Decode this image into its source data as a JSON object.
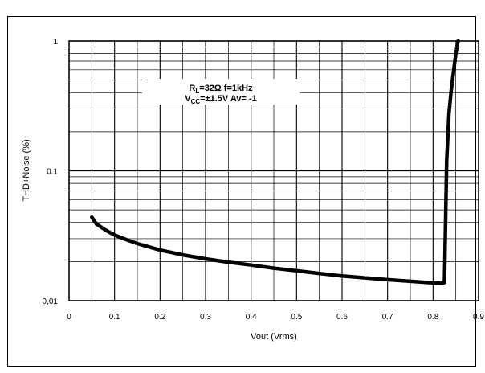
{
  "chart_data": {
    "type": "line",
    "xlabel": "Vout (Vrms)",
    "ylabel": "THD+Noise (%)",
    "xlim": [
      0,
      0.9
    ],
    "ylim": [
      0.01,
      1
    ],
    "y_scale": "log",
    "grid": true,
    "x_ticks": [
      "0",
      "0.1",
      "0.2",
      "0.3",
      "0.4",
      "0.5",
      "0.6",
      "0.7",
      "0.8",
      "0.9"
    ],
    "y_ticks": [
      "0,01",
      "0.1",
      "1"
    ],
    "annotation": {
      "line1": {
        "r": "R",
        "r_sub": "L",
        "rest": "=32Ω  f=1kHz"
      },
      "line2": {
        "v": "V",
        "v_sub": "CC",
        "rest": "=±1.5V  Av= -1"
      }
    },
    "series": [
      {
        "x": [
          0.05,
          0.06,
          0.08,
          0.1,
          0.12,
          0.15,
          0.2,
          0.25,
          0.3,
          0.35,
          0.4,
          0.45,
          0.5,
          0.55,
          0.6,
          0.65,
          0.7,
          0.75,
          0.8,
          0.82,
          0.825,
          0.83,
          0.835,
          0.84,
          0.845,
          0.85,
          0.855
        ],
        "y": [
          0.044,
          0.039,
          0.035,
          0.032,
          0.03,
          0.0275,
          0.0245,
          0.0225,
          0.021,
          0.0198,
          0.0188,
          0.0178,
          0.017,
          0.0162,
          0.0155,
          0.015,
          0.0145,
          0.0141,
          0.0137,
          0.0136,
          0.0138,
          0.12,
          0.28,
          0.42,
          0.58,
          0.8,
          1.0
        ]
      }
    ]
  }
}
